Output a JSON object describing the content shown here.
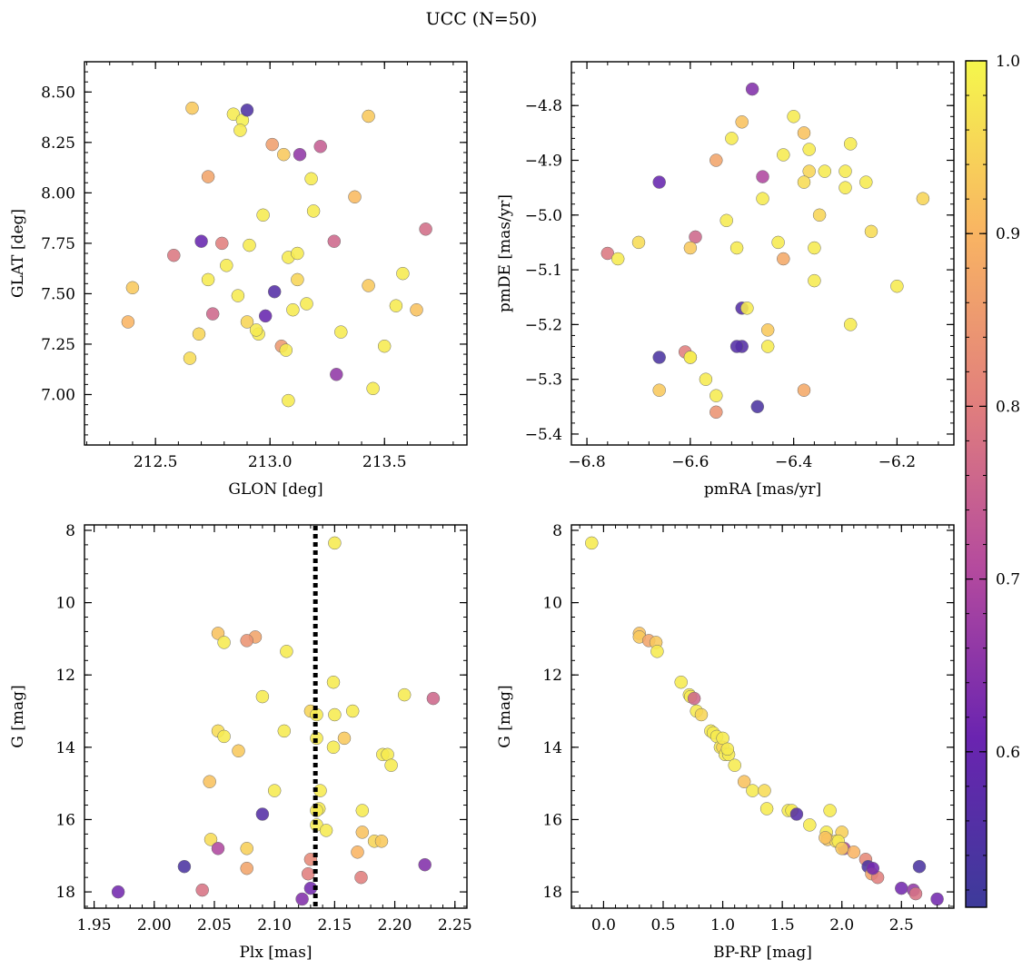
{
  "figure": {
    "title": "UCC (N=50)"
  },
  "colorbar": {
    "colormap": "plasma",
    "range": [
      0.51,
      1.0
    ],
    "ticks": [
      0.6,
      0.7,
      0.8,
      0.9,
      1.0
    ],
    "tick_labels": [
      "0.6",
      "0.7",
      "0.8",
      "0.9",
      "1.0"
    ]
  },
  "chart_data": [
    {
      "type": "scatter",
      "panel": "top-left",
      "xlabel": "GLON [deg]",
      "ylabel": "GLAT [deg]",
      "xlim": [
        212.19,
        213.86
      ],
      "ylim": [
        6.75,
        8.65
      ],
      "xticks": [
        212.5,
        213.0,
        213.5
      ],
      "xtick_labels": [
        "212.5",
        "213.0",
        "213.5"
      ],
      "yticks": [
        7.0,
        7.25,
        7.5,
        7.75,
        8.0,
        8.25,
        8.5
      ],
      "ytick_labels": [
        "7.00",
        "7.25",
        "7.50",
        "7.75",
        "8.00",
        "8.25",
        "8.50"
      ],
      "x": [
        212.66,
        212.84,
        212.88,
        212.87,
        212.9,
        213.01,
        213.06,
        213.13,
        213.22,
        213.43,
        212.73,
        213.18,
        213.37,
        213.19,
        212.97,
        212.7,
        212.79,
        212.91,
        213.28,
        213.68,
        212.58,
        213.08,
        213.12,
        212.81,
        213.58,
        212.4,
        212.73,
        213.02,
        212.86,
        213.12,
        213.16,
        213.43,
        213.55,
        213.1,
        212.75,
        212.98,
        212.9,
        213.64,
        212.38,
        213.31,
        212.95,
        212.69,
        212.65,
        213.5,
        213.05,
        213.07,
        213.29,
        213.45,
        213.08,
        212.94
      ],
      "y": [
        8.42,
        8.39,
        8.36,
        8.31,
        8.41,
        8.24,
        8.19,
        8.19,
        8.23,
        8.38,
        8.08,
        8.07,
        7.98,
        7.91,
        7.89,
        7.76,
        7.75,
        7.74,
        7.76,
        7.82,
        7.69,
        7.68,
        7.7,
        7.64,
        7.6,
        7.53,
        7.57,
        7.51,
        7.49,
        7.57,
        7.45,
        7.54,
        7.44,
        7.42,
        7.4,
        7.39,
        7.36,
        7.42,
        7.36,
        7.31,
        7.3,
        7.3,
        7.18,
        7.24,
        7.24,
        7.22,
        7.1,
        7.03,
        6.97,
        7.32
      ],
      "color_values": [
        0.93,
        0.98,
        0.99,
        0.98,
        0.55,
        0.86,
        0.93,
        0.66,
        0.74,
        0.93,
        0.87,
        0.98,
        0.91,
        0.98,
        0.98,
        0.6,
        0.8,
        0.98,
        0.76,
        0.77,
        0.79,
        0.98,
        0.98,
        0.98,
        0.98,
        0.93,
        0.98,
        0.56,
        0.98,
        0.95,
        0.98,
        0.93,
        0.98,
        0.98,
        0.76,
        0.6,
        0.95,
        0.92,
        0.9,
        0.98,
        0.98,
        0.95,
        0.96,
        0.98,
        0.85,
        0.98,
        0.66,
        0.98,
        0.98,
        0.98
      ]
    },
    {
      "type": "scatter",
      "panel": "top-right",
      "xlabel": "pmRA [mas/yr]",
      "ylabel": "pmDE [mas/yr]",
      "xlim": [
        -6.83,
        -6.09
      ],
      "ylim": [
        -5.42,
        -4.72
      ],
      "xticks": [
        -6.8,
        -6.6,
        -6.4,
        -6.2
      ],
      "xtick_labels": [
        "−6.8",
        "−6.6",
        "−6.4",
        "−6.2"
      ],
      "yticks": [
        -5.4,
        -5.3,
        -5.2,
        -5.1,
        -5.0,
        -4.9,
        -4.8
      ],
      "ytick_labels": [
        "−5.4",
        "−5.3",
        "−5.2",
        "−5.1",
        "−5.0",
        "−4.9",
        "−4.8"
      ],
      "x": [
        -6.48,
        -6.5,
        -6.4,
        -6.52,
        -6.38,
        -6.29,
        -6.42,
        -6.37,
        -6.46,
        -6.37,
        -6.34,
        -6.3,
        -6.55,
        -6.38,
        -6.66,
        -6.26,
        -6.46,
        -6.3,
        -6.15,
        -6.35,
        -6.53,
        -6.25,
        -6.59,
        -6.7,
        -6.43,
        -6.6,
        -6.51,
        -6.36,
        -6.76,
        -6.74,
        -6.42,
        -6.36,
        -6.2,
        -6.5,
        -6.29,
        -6.45,
        -6.61,
        -6.66,
        -6.5,
        -6.6,
        -6.51,
        -6.57,
        -6.49,
        -6.55,
        -6.38,
        -6.66,
        -6.47,
        -6.55,
        -6.6,
        -6.45
      ],
      "y": [
        -4.77,
        -4.83,
        -4.82,
        -4.86,
        -4.85,
        -4.87,
        -4.89,
        -4.88,
        -4.93,
        -4.92,
        -4.92,
        -4.92,
        -4.9,
        -4.94,
        -4.94,
        -4.94,
        -4.97,
        -4.95,
        -4.97,
        -5.0,
        -5.01,
        -5.03,
        -5.04,
        -5.05,
        -5.05,
        -5.06,
        -5.06,
        -5.06,
        -5.07,
        -5.08,
        -5.08,
        -5.12,
        -5.13,
        -5.17,
        -5.2,
        -5.21,
        -5.25,
        -5.26,
        -5.24,
        -5.26,
        -5.24,
        -5.3,
        -5.17,
        -5.33,
        -5.32,
        -5.32,
        -5.35,
        -5.36,
        -5.26,
        -5.24
      ],
      "color_values": [
        0.64,
        0.92,
        0.98,
        0.98,
        0.92,
        0.98,
        0.98,
        0.98,
        0.7,
        0.95,
        0.98,
        0.98,
        0.87,
        0.96,
        0.6,
        0.98,
        0.98,
        0.98,
        0.95,
        0.95,
        0.98,
        0.96,
        0.76,
        0.96,
        0.98,
        0.93,
        0.98,
        0.98,
        0.79,
        0.98,
        0.88,
        0.98,
        0.98,
        0.56,
        0.98,
        0.93,
        0.8,
        0.54,
        0.56,
        0.98,
        0.56,
        0.98,
        0.98,
        0.98,
        0.88,
        0.93,
        0.54,
        0.84,
        0.98,
        0.98
      ]
    },
    {
      "type": "scatter",
      "panel": "bottom-left",
      "xlabel": "Plx [mas]",
      "ylabel": "G [mag]",
      "xlim": [
        1.942,
        2.26
      ],
      "ylim": [
        18.45,
        7.85
      ],
      "yinverted": true,
      "vline": 2.134,
      "xticks": [
        1.95,
        2.0,
        2.05,
        2.1,
        2.15,
        2.2,
        2.25
      ],
      "xtick_labels": [
        "1.95",
        "2.00",
        "2.05",
        "2.10",
        "2.15",
        "2.20",
        "2.25"
      ],
      "yticks": [
        8,
        10,
        12,
        14,
        16,
        18
      ],
      "ytick_labels": [
        "8",
        "10",
        "12",
        "14",
        "16",
        "18"
      ],
      "x": [
        2.15,
        2.053,
        2.084,
        2.058,
        2.077,
        2.11,
        2.149,
        2.208,
        2.232,
        2.09,
        2.13,
        2.135,
        2.165,
        2.15,
        2.149,
        2.053,
        2.058,
        2.108,
        2.135,
        2.158,
        2.19,
        2.194,
        2.197,
        2.07,
        2.046,
        2.138,
        2.1,
        2.137,
        2.135,
        2.173,
        2.135,
        2.09,
        2.143,
        2.047,
        2.173,
        2.183,
        2.189,
        2.077,
        2.053,
        2.169,
        2.13,
        2.025,
        2.077,
        2.128,
        2.04,
        2.172,
        2.225,
        1.97,
        2.13,
        2.123
      ],
      "y": [
        8.35,
        10.85,
        10.95,
        11.1,
        11.05,
        11.35,
        12.2,
        12.55,
        12.65,
        12.6,
        13.0,
        13.1,
        13.0,
        13.1,
        14.0,
        13.55,
        13.7,
        13.55,
        13.75,
        13.75,
        14.2,
        14.2,
        14.5,
        14.1,
        14.95,
        15.2,
        15.2,
        15.7,
        15.75,
        15.75,
        16.15,
        15.85,
        16.3,
        16.55,
        16.35,
        16.6,
        16.6,
        16.8,
        16.8,
        16.9,
        17.1,
        17.3,
        17.35,
        17.5,
        17.95,
        17.6,
        17.25,
        18.0,
        17.9,
        18.2
      ],
      "color_values": [
        0.98,
        0.92,
        0.87,
        0.98,
        0.84,
        0.98,
        0.98,
        0.98,
        0.76,
        0.98,
        0.95,
        0.98,
        0.98,
        0.98,
        0.98,
        0.96,
        0.98,
        0.98,
        0.98,
        0.93,
        0.98,
        0.98,
        0.98,
        0.93,
        0.92,
        0.98,
        0.98,
        0.98,
        0.98,
        0.98,
        0.98,
        0.56,
        0.98,
        0.96,
        0.92,
        0.95,
        0.93,
        0.94,
        0.7,
        0.9,
        0.82,
        0.54,
        0.87,
        0.8,
        0.78,
        0.8,
        0.64,
        0.62,
        0.62,
        0.64
      ]
    },
    {
      "type": "scatter",
      "panel": "bottom-right",
      "xlabel": "BP-RP [mag]",
      "ylabel": "G [mag]",
      "xlim": [
        -0.27,
        2.94
      ],
      "ylim": [
        18.45,
        7.85
      ],
      "yinverted": true,
      "xticks": [
        0.0,
        0.5,
        1.0,
        1.5,
        2.0,
        2.5
      ],
      "xtick_labels": [
        "0.0",
        "0.5",
        "1.0",
        "1.5",
        "2.0",
        "2.5"
      ],
      "yticks": [
        8,
        10,
        12,
        14,
        16,
        18
      ],
      "ytick_labels": [
        "8",
        "10",
        "12",
        "14",
        "16",
        "18"
      ],
      "x": [
        -0.1,
        0.3,
        0.3,
        0.38,
        0.44,
        0.45,
        0.65,
        0.72,
        0.73,
        0.76,
        0.78,
        0.82,
        0.9,
        0.92,
        0.95,
        0.98,
        1.0,
        1.02,
        1.05,
        1.1,
        1.18,
        1.25,
        1.35,
        1.37,
        1.55,
        1.58,
        1.62,
        1.73,
        1.87,
        1.88,
        1.95,
        2.0,
        2.02,
        2.1,
        2.2,
        2.22,
        2.25,
        2.3,
        2.5,
        2.6,
        2.62,
        2.65,
        2.8,
        1.0,
        1.04,
        1.9,
        1.97,
        2.0,
        1.86,
        2.26
      ],
      "y": [
        8.35,
        10.85,
        10.95,
        11.05,
        11.1,
        11.35,
        12.2,
        12.55,
        12.6,
        12.65,
        13.0,
        13.1,
        13.55,
        13.6,
        13.7,
        14.0,
        14.0,
        14.2,
        14.2,
        14.5,
        14.95,
        15.2,
        15.2,
        15.7,
        15.75,
        15.75,
        15.85,
        16.15,
        16.35,
        16.55,
        16.6,
        16.35,
        16.8,
        16.9,
        17.1,
        17.3,
        17.5,
        17.6,
        17.9,
        17.95,
        18.05,
        17.3,
        18.2,
        13.75,
        14.05,
        15.75,
        16.6,
        16.8,
        16.5,
        17.35
      ],
      "color_values": [
        0.98,
        0.92,
        0.93,
        0.87,
        0.93,
        0.98,
        0.98,
        0.98,
        0.98,
        0.76,
        0.98,
        0.95,
        0.98,
        0.98,
        0.98,
        0.98,
        0.95,
        0.98,
        0.98,
        0.98,
        0.92,
        0.98,
        0.96,
        0.98,
        0.98,
        0.98,
        0.56,
        0.98,
        0.98,
        0.93,
        0.96,
        0.94,
        0.7,
        0.9,
        0.82,
        0.54,
        0.87,
        0.8,
        0.62,
        0.66,
        0.78,
        0.54,
        0.62,
        0.98,
        0.98,
        0.98,
        0.98,
        0.93,
        0.92,
        0.62
      ]
    }
  ]
}
